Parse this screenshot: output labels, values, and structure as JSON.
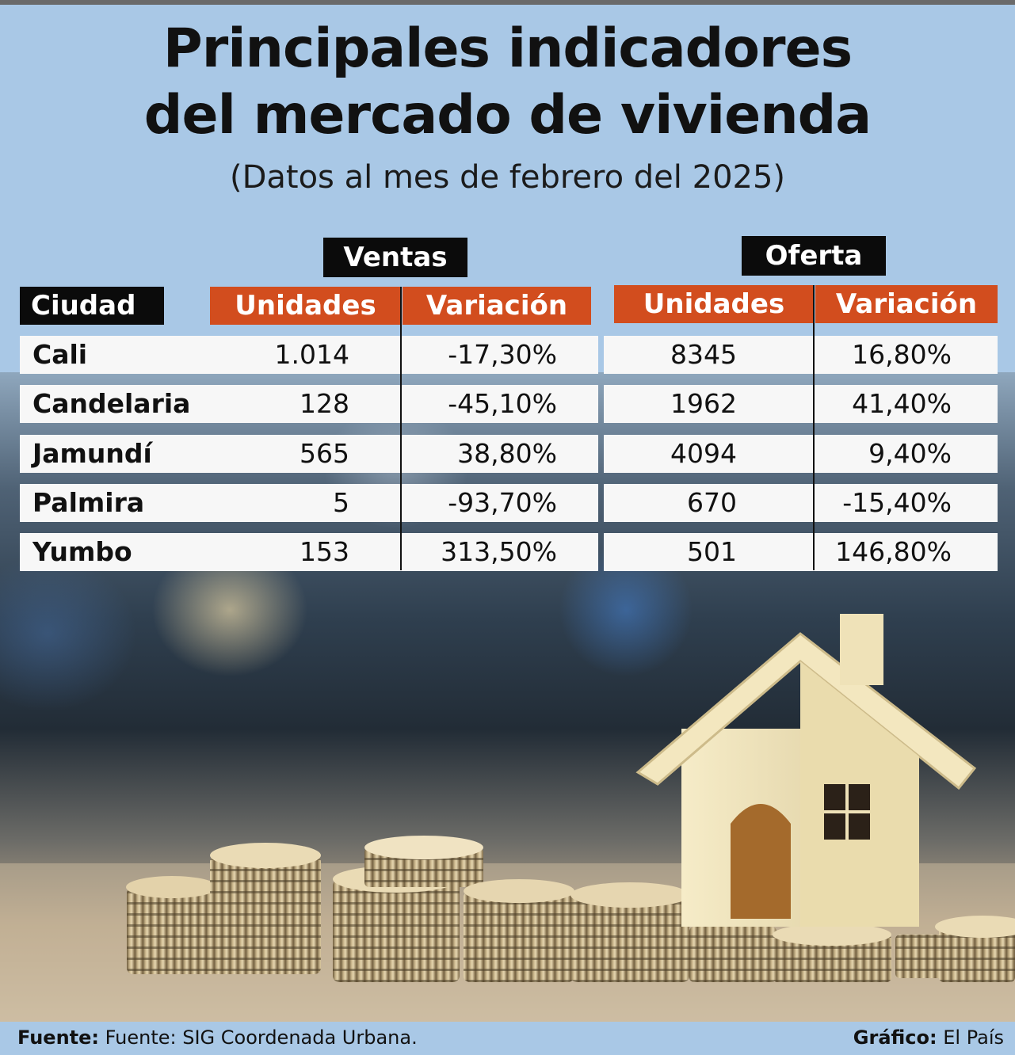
{
  "title_line1": "Principales indicadores",
  "title_line2": "del mercado de vivienda",
  "subtitle": "(Datos al mes de febrero del 2025)",
  "groups": {
    "ventas": "Ventas",
    "oferta": "Oferta"
  },
  "columns": {
    "ciudad": "Ciudad",
    "unidades": "Unidades",
    "variacion": "Variación"
  },
  "rows": [
    {
      "ciudad": "Cali",
      "ventas_unidades": "1.014",
      "ventas_variacion": "-17,30%",
      "oferta_unidades": "8345",
      "oferta_variacion": "16,80%"
    },
    {
      "ciudad": "Candelaria",
      "ventas_unidades": "128",
      "ventas_variacion": "-45,10%",
      "oferta_unidades": "1962",
      "oferta_variacion": "41,40%"
    },
    {
      "ciudad": "Jamundí",
      "ventas_unidades": "565",
      "ventas_variacion": "38,80%",
      "oferta_unidades": "4094",
      "oferta_variacion": "9,40%"
    },
    {
      "ciudad": "Palmira",
      "ventas_unidades": "5",
      "ventas_variacion": "-93,70%",
      "oferta_unidades": "670",
      "oferta_variacion": "-15,40%"
    },
    {
      "ciudad": "Yumbo",
      "ventas_unidades": "153",
      "ventas_variacion": "313,50%",
      "oferta_unidades": "501",
      "oferta_variacion": "146,80%"
    }
  ],
  "footer": {
    "fuente_label": "Fuente:",
    "fuente_text": "Fuente: SIG Coordenada Urbana.",
    "grafico_label": "Gráfico:",
    "grafico_text": "El País"
  },
  "colors": {
    "background": "#a9c8e6",
    "header_orange": "#d24d1e",
    "header_black": "#0b0b0b"
  }
}
